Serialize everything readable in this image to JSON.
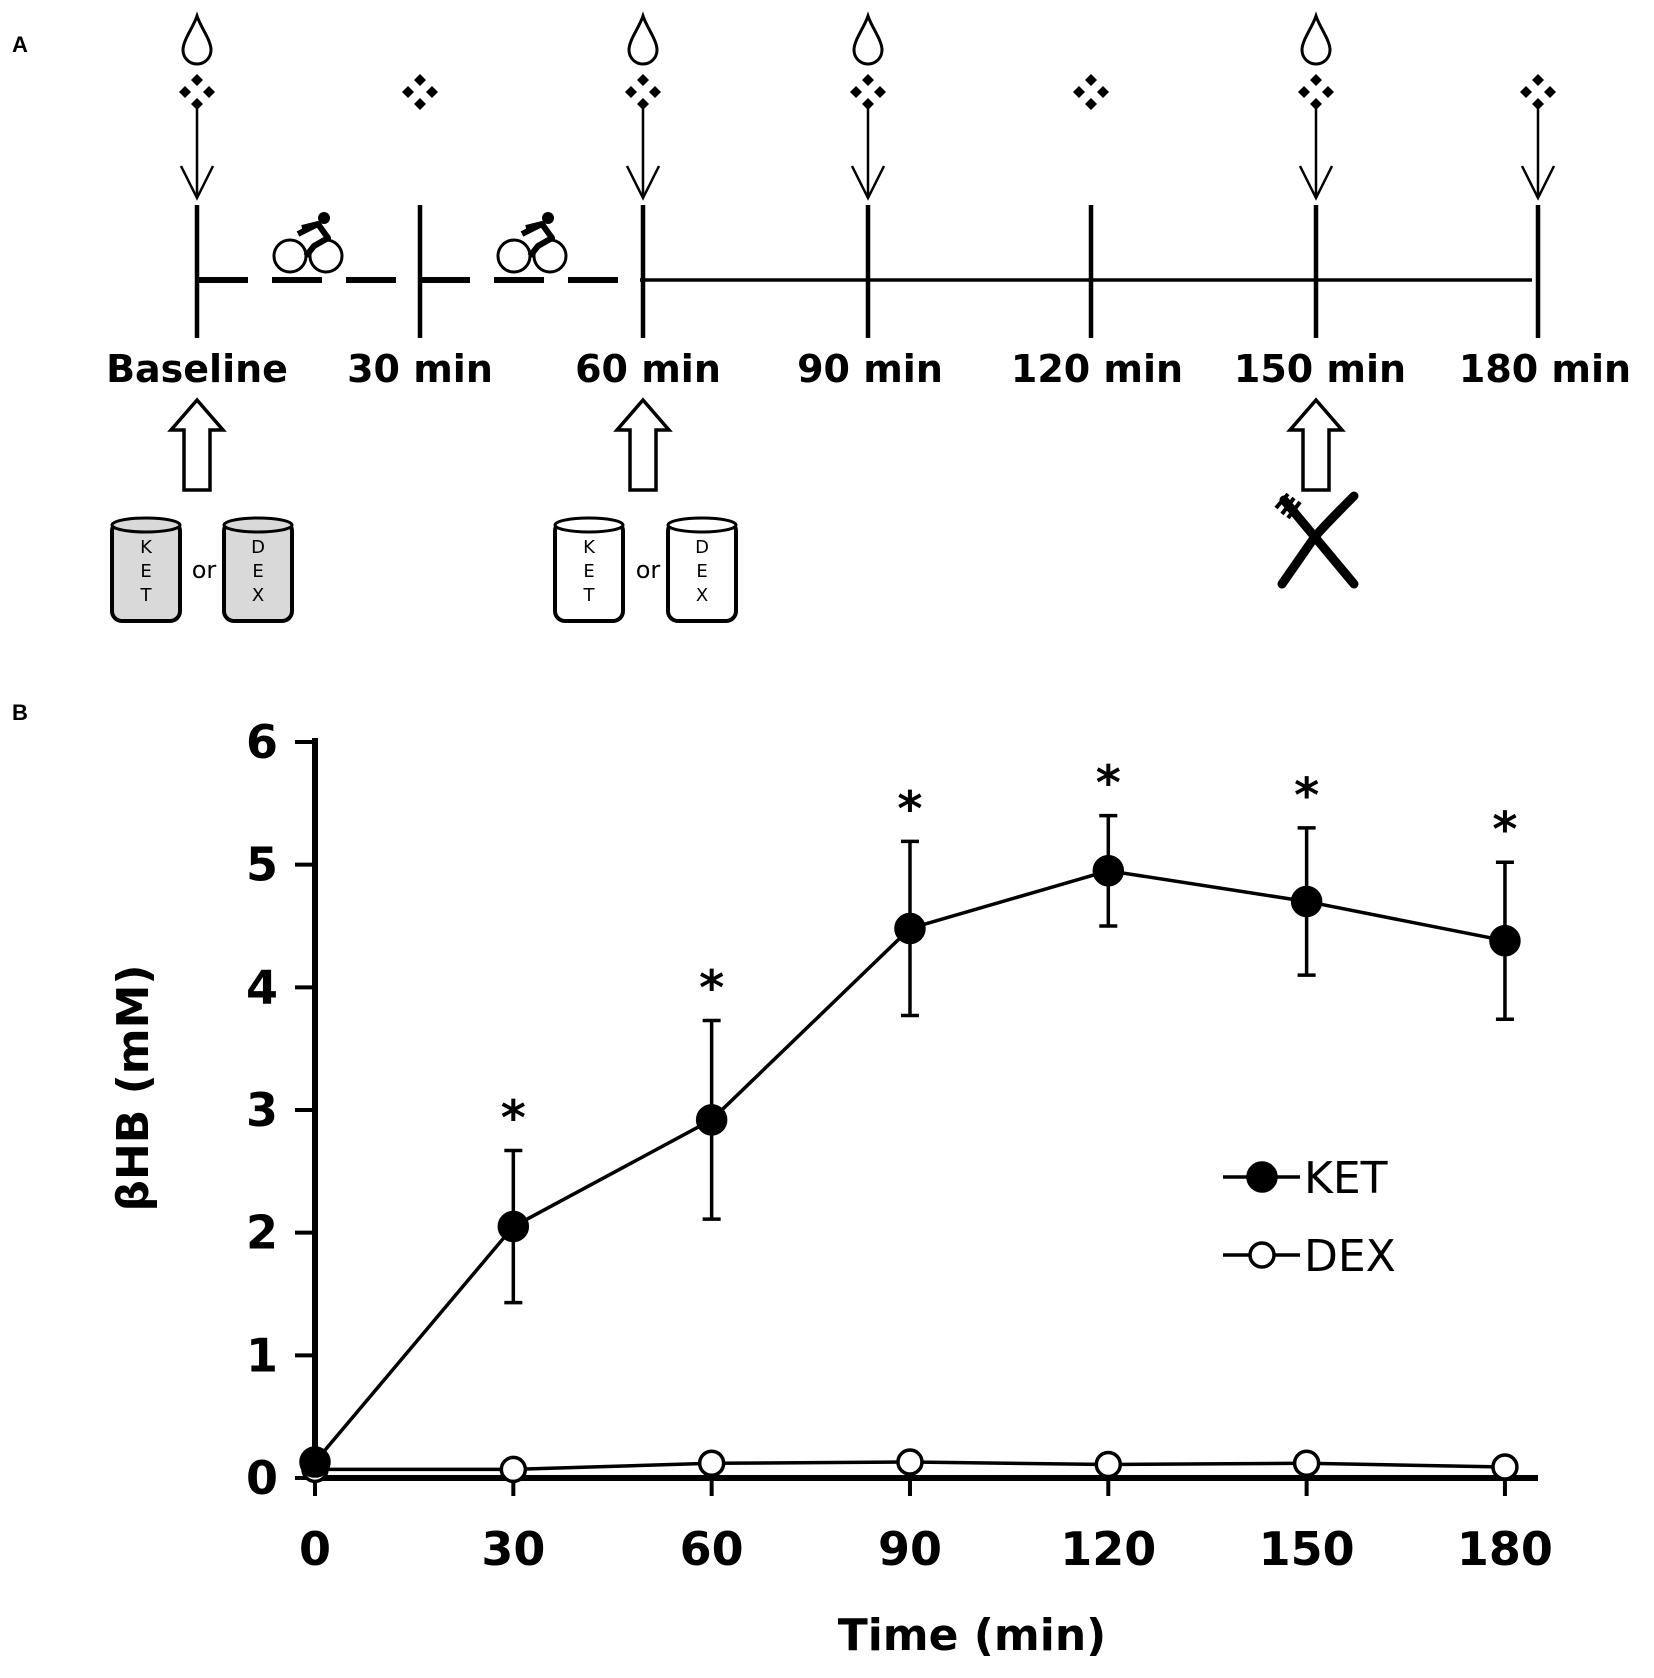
{
  "panel_a": {
    "letter": "A",
    "timepoints": [
      "Baseline",
      "30 min",
      "60 min",
      "90 min",
      "120 min",
      "150 min",
      "180 min"
    ],
    "exercise_segments": 2,
    "blood_drop_at": [
      "Baseline",
      "60 min",
      "90 min",
      "150 min"
    ],
    "arrow_down_at": [
      "Baseline",
      "60 min",
      "90 min",
      "150 min",
      "180 min"
    ],
    "diamond_at": [
      "Baseline",
      "30 min",
      "60 min",
      "90 min",
      "120 min",
      "150 min",
      "180 min"
    ],
    "drinks": [
      {
        "at": "Baseline",
        "filled": true,
        "left": [
          "K",
          "E",
          "T"
        ],
        "right": [
          "D",
          "E",
          "X"
        ],
        "or": "or",
        "fill_color": "#d9d9d9"
      },
      {
        "at": "60 min",
        "filled": false,
        "left": [
          "K",
          "E",
          "T"
        ],
        "right": [
          "D",
          "E",
          "X"
        ],
        "or": "or",
        "fill_color": "#ffffff"
      }
    ],
    "meal_at": "150 min",
    "icons": [
      "blood-drop-icon",
      "diamond-cluster-icon",
      "down-arrow-icon",
      "cyclist-icon",
      "up-arrow-icon",
      "drink-can-icon",
      "fork-knife-icon"
    ]
  },
  "panel_b": {
    "letter": "B"
  },
  "chart_data": {
    "type": "line",
    "title": "",
    "xlabel": "Time (min)",
    "ylabel": "βHB (mM)",
    "x": [
      0,
      30,
      60,
      90,
      120,
      150,
      180
    ],
    "xticks": [
      "0",
      "30",
      "60",
      "90",
      "120",
      "150",
      "180"
    ],
    "yticks": [
      "0",
      "1",
      "2",
      "3",
      "4",
      "5",
      "6"
    ],
    "xlim": [
      0,
      185
    ],
    "ylim": [
      0,
      6
    ],
    "grid": false,
    "legend_position": "right-middle",
    "series": [
      {
        "name": "KET",
        "marker": "filled-circle",
        "color": "#000000",
        "values": [
          0.13,
          2.05,
          2.92,
          4.48,
          4.95,
          4.7,
          4.38
        ],
        "error": [
          0.0,
          0.62,
          0.81,
          0.71,
          0.45,
          0.6,
          0.64
        ],
        "significant": [
          false,
          true,
          true,
          true,
          true,
          true,
          true
        ]
      },
      {
        "name": "DEX",
        "marker": "open-circle",
        "color": "#000000",
        "values": [
          0.07,
          0.07,
          0.12,
          0.13,
          0.11,
          0.12,
          0.09
        ],
        "error": [
          0,
          0,
          0,
          0,
          0,
          0,
          0
        ],
        "significant": [
          false,
          false,
          false,
          false,
          false,
          false,
          false
        ]
      }
    ],
    "significance_marker": "*"
  }
}
